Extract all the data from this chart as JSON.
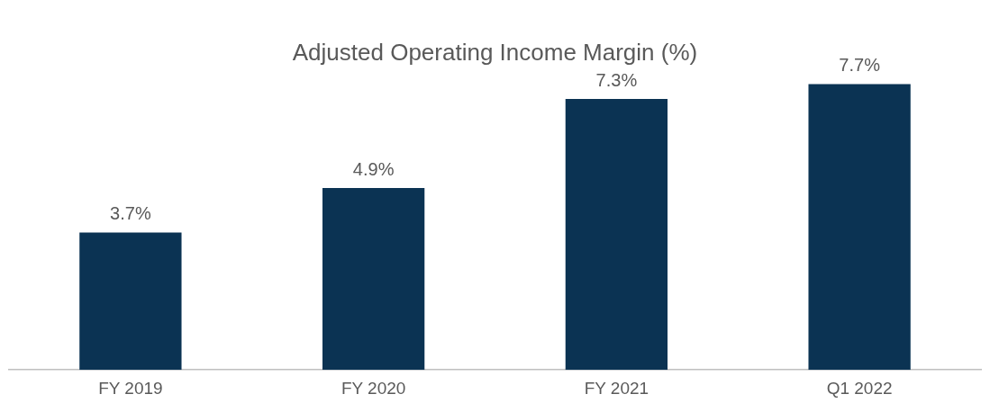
{
  "chart_data": {
    "type": "bar",
    "title": "Adjusted Operating Income Margin (%)",
    "categories": [
      "FY 2019",
      "FY 2020",
      "FY 2021",
      "Q1 2022"
    ],
    "values": [
      3.7,
      4.9,
      7.3,
      7.7
    ],
    "value_labels": [
      "3.7%",
      "4.9%",
      "7.3%",
      "7.7%"
    ],
    "color": "#0b3353",
    "grid": false
  }
}
